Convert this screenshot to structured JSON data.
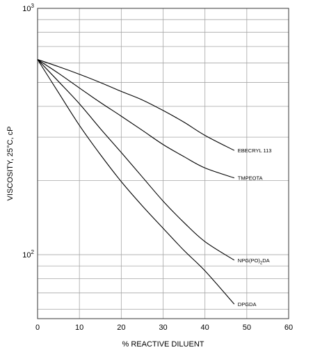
{
  "chart_data": {
    "type": "line",
    "xlabel": "% REACTIVE DILUENT",
    "ylabel": "VISCOSITY, 25°C, cP",
    "xlim": [
      0,
      60
    ],
    "x_ticks": [
      "0",
      "10",
      "20",
      "30",
      "40",
      "50",
      "60"
    ],
    "ylim": [
      55,
      1000
    ],
    "y_scale": "log",
    "y_ticks": [
      {
        "value": 100,
        "base": "10",
        "exp": "2"
      },
      {
        "value": 1000,
        "base": "10",
        "exp": "3"
      }
    ],
    "grid": true,
    "series": [
      {
        "name": "EBECRYL 113",
        "x": [
          0,
          5,
          10,
          15,
          20,
          25,
          30,
          35,
          40,
          47
        ],
        "y": [
          620,
          580,
          540,
          500,
          460,
          425,
          385,
          345,
          305,
          265
        ]
      },
      {
        "name": "TMPEOTA",
        "x": [
          0,
          5,
          10,
          15,
          20,
          25,
          30,
          35,
          40,
          47
        ],
        "y": [
          620,
          545,
          475,
          415,
          365,
          320,
          280,
          250,
          225,
          205
        ]
      },
      {
        "name": "NPG(PO)",
        "name_sub": "2",
        "name_suffix": "DA",
        "x": [
          0,
          5,
          10,
          15,
          20,
          25,
          30,
          35,
          40,
          47
        ],
        "y": [
          620,
          505,
          410,
          325,
          260,
          207,
          165,
          135,
          113,
          95
        ]
      },
      {
        "name": "DPGDA",
        "x": [
          0,
          5,
          10,
          15,
          20,
          25,
          30,
          35,
          40,
          47
        ],
        "y": [
          620,
          455,
          335,
          255,
          198,
          158,
          128,
          104,
          86,
          63
        ]
      }
    ]
  }
}
